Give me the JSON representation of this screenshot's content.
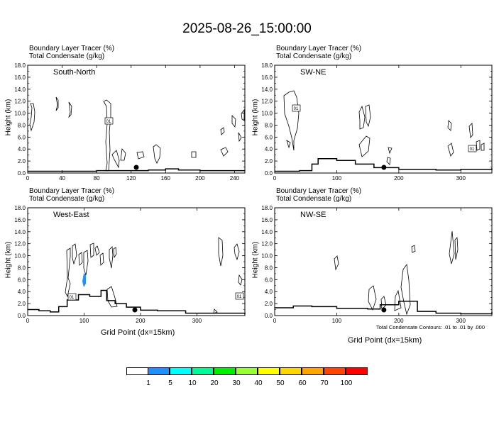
{
  "title": "2025-08-26_15:00:00",
  "field_titles": {
    "line1": "Boundary Layer Tracer   (%)",
    "line2": "Total Condensate   (g/kg)"
  },
  "ylabel": "Height (km)",
  "xlabel": "Grid Point (dx=15km)",
  "contour_note": "Total Condensate Contours: .01 to .01 by .000",
  "contour_label": "01",
  "colorbar": {
    "colors": [
      "#ffffff",
      "#1e90ff",
      "#00ffff",
      "#00fa9a",
      "#00ee00",
      "#9aff32",
      "#ffff00",
      "#ffd700",
      "#ffa500",
      "#ff4500",
      "#ff0000"
    ],
    "labels": [
      "1",
      "5",
      "10",
      "20",
      "30",
      "40",
      "50",
      "60",
      "70",
      "100"
    ]
  },
  "chart_data": [
    {
      "type": "heatmap",
      "name": "South-North",
      "title": "South-North",
      "xticks": [
        "0",
        "40",
        "80",
        "120",
        "160",
        "200",
        "240"
      ],
      "xlim": [
        0,
        252
      ],
      "yticks": [
        "0.0",
        "2.0",
        "4.0",
        "6.0",
        "8.0",
        "10.0",
        "12.0",
        "14.0",
        "16.0",
        "18.0"
      ],
      "ylim": [
        0,
        18
      ],
      "marker_x": 126,
      "terrain": [
        [
          0,
          0.3
        ],
        [
          30,
          0.3
        ],
        [
          60,
          0.3
        ],
        [
          80,
          0.4
        ],
        [
          100,
          0.4
        ],
        [
          140,
          0.5
        ],
        [
          160,
          0.7
        ],
        [
          175,
          0.5
        ],
        [
          200,
          0.4
        ],
        [
          252,
          0.4
        ]
      ]
    },
    {
      "type": "heatmap",
      "name": "SW-NE",
      "title": "SW-NE",
      "xticks": [
        "0",
        "100",
        "200",
        "300"
      ],
      "xlim": [
        0,
        350
      ],
      "yticks": [
        "0.0",
        "2.0",
        "4.0",
        "6.0",
        "8.0",
        "10.0",
        "12.0",
        "14.0",
        "16.0",
        "18.0"
      ],
      "ylim": [
        0,
        18
      ],
      "marker_x": 176,
      "terrain": [
        [
          0,
          0.3
        ],
        [
          40,
          0.4
        ],
        [
          60,
          1.5
        ],
        [
          70,
          2.4
        ],
        [
          100,
          2.1
        ],
        [
          130,
          1.5
        ],
        [
          160,
          0.9
        ],
        [
          200,
          0.6
        ],
        [
          260,
          0.5
        ],
        [
          300,
          0.6
        ],
        [
          350,
          0.8
        ]
      ]
    },
    {
      "type": "heatmap",
      "name": "West-East",
      "title": "West-East",
      "xticks": [
        "0",
        "100",
        "200",
        "300"
      ],
      "xlim": [
        0,
        385
      ],
      "yticks": [
        "0.0",
        "2.0",
        "4.0",
        "6.0",
        "8.0",
        "10.0",
        "12.0",
        "14.0",
        "16.0",
        "18.0"
      ],
      "ylim": [
        0,
        18
      ],
      "marker_x": 190,
      "terrain": [
        [
          0,
          1.0
        ],
        [
          20,
          0.8
        ],
        [
          40,
          0.6
        ],
        [
          55,
          1.5
        ],
        [
          70,
          2.6
        ],
        [
          90,
          3.5
        ],
        [
          110,
          3.2
        ],
        [
          130,
          4.2
        ],
        [
          140,
          2.5
        ],
        [
          155,
          2.0
        ],
        [
          175,
          1.4
        ],
        [
          200,
          0.9
        ],
        [
          230,
          0.8
        ],
        [
          280,
          0.4
        ],
        [
          385,
          0.2
        ]
      ]
    },
    {
      "type": "heatmap",
      "name": "NW-SE",
      "title": "NW-SE",
      "xticks": [
        "0",
        "100",
        "200",
        "300"
      ],
      "xlim": [
        0,
        350
      ],
      "yticks": [
        "0.0",
        "2.0",
        "4.0",
        "6.0",
        "8.0",
        "10.0",
        "12.0",
        "14.0",
        "16.0",
        "18.0"
      ],
      "ylim": [
        0,
        18
      ],
      "marker_x": 176,
      "terrain": [
        [
          0,
          1.3
        ],
        [
          30,
          1.6
        ],
        [
          60,
          1.5
        ],
        [
          100,
          1.2
        ],
        [
          150,
          1.1
        ],
        [
          170,
          1.8
        ],
        [
          200,
          2.4
        ],
        [
          230,
          0.7
        ],
        [
          260,
          0.4
        ],
        [
          300,
          0.3
        ],
        [
          350,
          0.6
        ]
      ]
    }
  ]
}
